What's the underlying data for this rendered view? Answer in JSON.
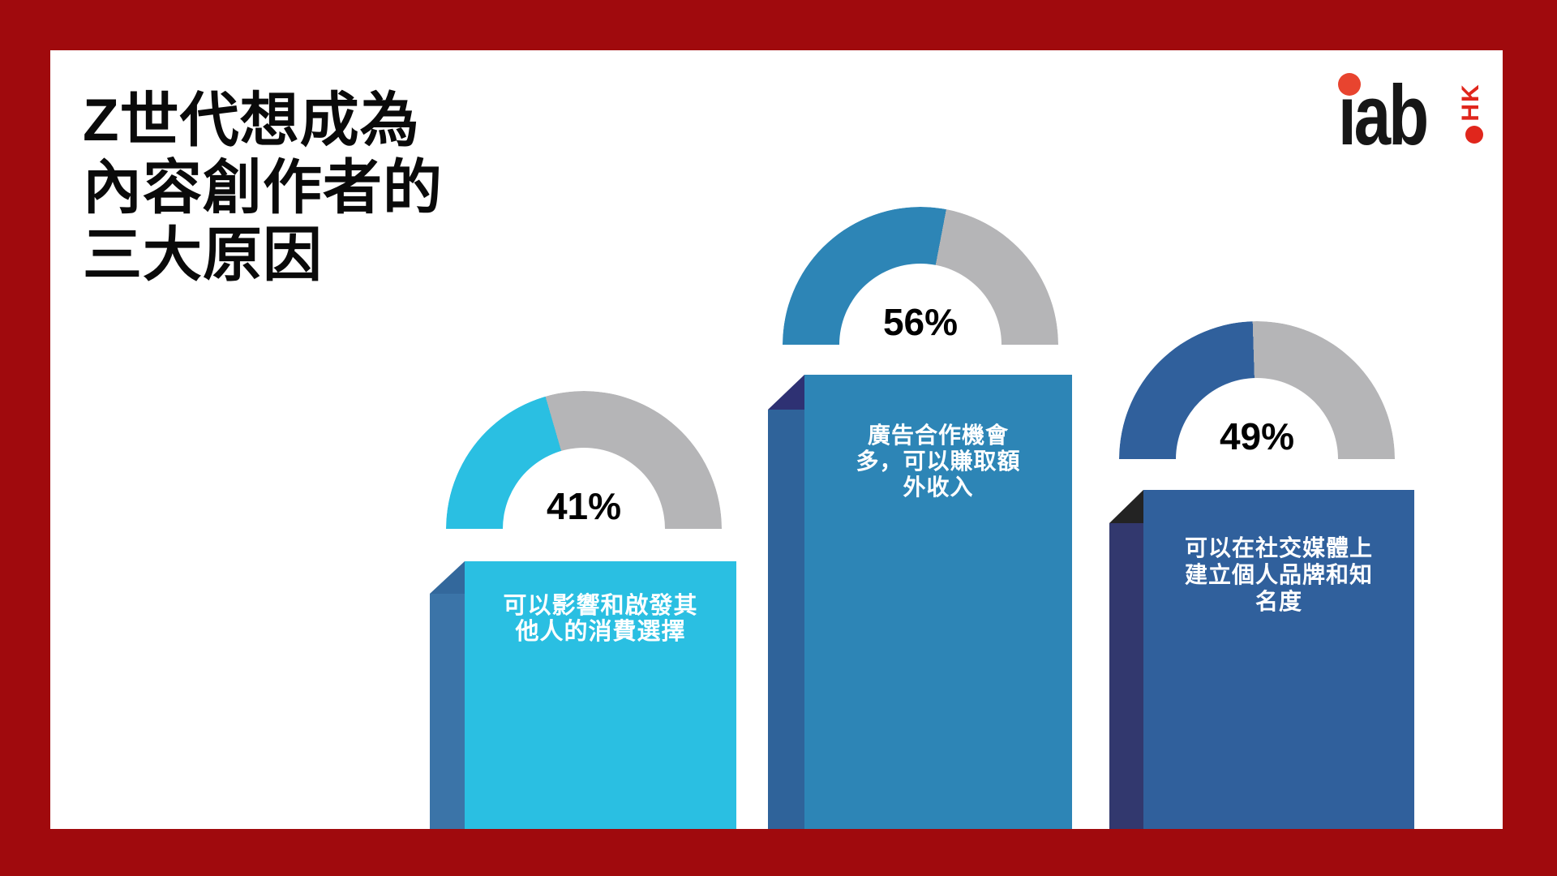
{
  "theme": {
    "frame_color": "#a00a0d",
    "panel_color": "#ffffff",
    "gauge_track_color": "#b5b5b7",
    "canvas_vars": "--frame:#a00a0d;--rest:#b5b5b7"
  },
  "title": {
    "full": "Z世代想成為內容創作者的三大原因",
    "lines": [
      "Z世代想成為",
      "內容創作者的",
      "三大原因"
    ]
  },
  "logo": {
    "brand": "iab",
    "region": "HK",
    "brand_color": "#161616",
    "dot_color": "#e8442f",
    "region_color": "#e0261c"
  },
  "chart_data": {
    "type": "bar",
    "title": "Z世代想成為內容創作者的三大原因",
    "categories": [
      "可以影響和啟發其他人的消費選擇",
      "廣告合作機會多，可以賺取額外收入",
      "可以在社交媒體上建立個人品牌和知名度"
    ],
    "values": [
      41,
      56,
      49
    ],
    "unit": "%",
    "ylim": [
      0,
      100
    ],
    "legend": "none",
    "style_note": "each category drawn as 3D column with semicircular donut gauge above it; gauge fill = column color, remainder gray",
    "bars": [
      {
        "value": 41,
        "percent_label": "41%",
        "label": "可以影響和啟發其他人的消費選擇",
        "label_lines": [
          "可以影響和啟發其",
          "他人的消費選擇"
        ],
        "face_color": "#2abfe2",
        "side_color": "#3b74a8",
        "corner_color": "#33689c",
        "gauge_track": "#b5b5b7",
        "css_vars": "--face:#2abfe2;--side:#3b74a8;--corner:#33689c;--deg:73.8deg"
      },
      {
        "value": 56,
        "percent_label": "56%",
        "label": "廣告合作機會多，可以賺取額外收入",
        "label_lines": [
          "廣告合作機會",
          "多，可以賺取額",
          "外收入"
        ],
        "face_color": "#2d85b6",
        "side_color": "#2f639a",
        "corner_color": "#2e3173",
        "gauge_track": "#b5b5b7",
        "css_vars": "--face:#2d85b6;--side:#2f639a;--corner:#2e3173;--deg:100.8deg"
      },
      {
        "value": 49,
        "percent_label": "49%",
        "label": "可以在社交媒體上建立個人品牌和知名度",
        "label_lines": [
          "可以在社交媒體上",
          "建立個人品牌和知",
          "名度"
        ],
        "face_color": "#30609c",
        "side_color": "#32386e",
        "corner_color": "#232323",
        "gauge_track": "#b5b5b7",
        "css_vars": "--face:#30609c;--side:#32386e;--corner:#232323;--deg:88.2deg"
      }
    ]
  }
}
